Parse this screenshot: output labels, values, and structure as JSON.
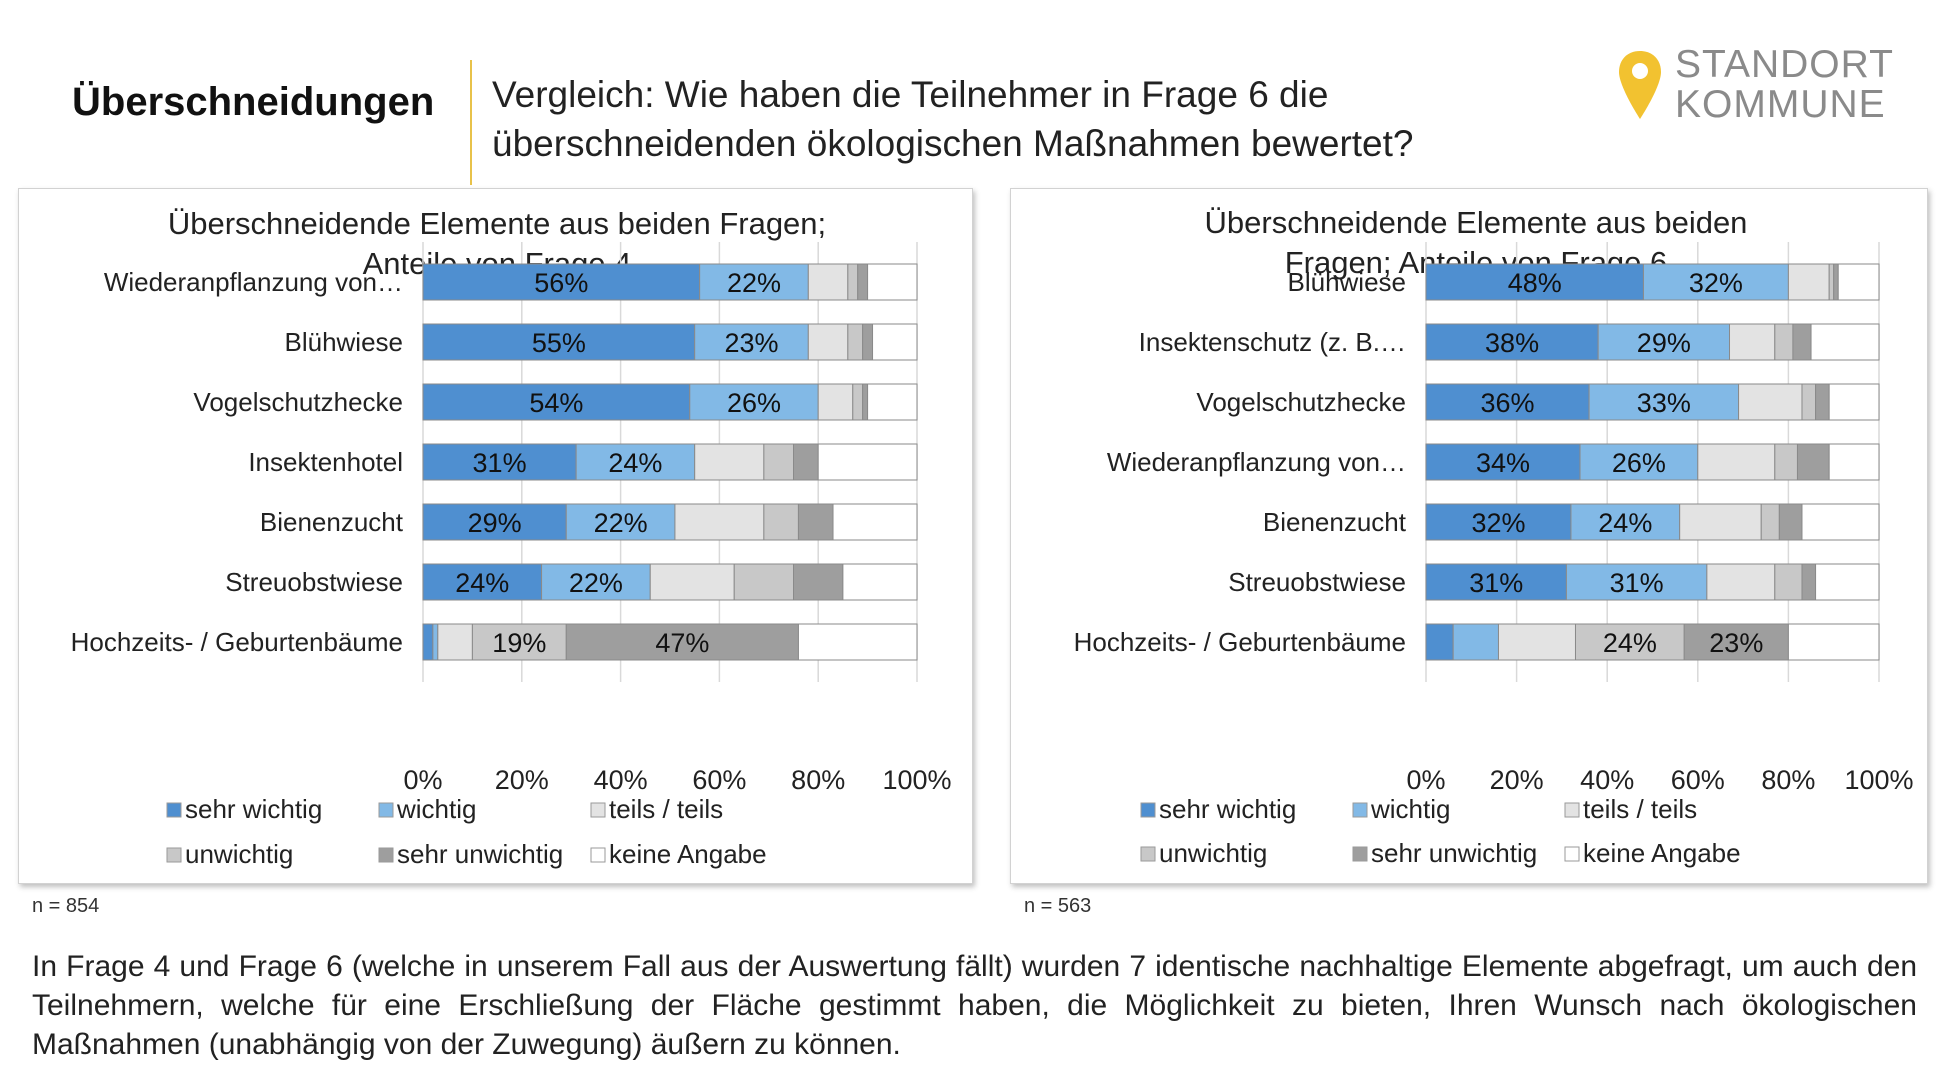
{
  "header": {
    "title": "Überschneidungen",
    "question": "Vergleich: Wie haben die Teilnehmer in Frage 6 die überschneidenden ökologischen Maßnahmen bewertet?"
  },
  "logo": {
    "line1": "STANDORT",
    "line2": "KOMMUNE",
    "pin_color": "#f2c230"
  },
  "footnote": "In Frage 4 und Frage 6 (welche in unserem Fall aus der Auswertung fällt) wurden 7 identische nachhaltige Elemente abgefragt, um auch den Teilnehmern, welche für eine Erschließung der Fläche gestimmt haben, die Möglichkeit zu bieten, Ihren Wunsch nach ökologischen Maßnahmen (unabhängig von der Zuwegung) äußern zu können.",
  "n_left": "n = 854",
  "n_right": "n = 563",
  "chart_data": [
    {
      "type": "bar",
      "orientation": "horizontal",
      "stacked": "percent",
      "title": "Überschneidende Elemente aus beiden Fragen; Anteile von Frage 4",
      "categories": [
        "Wiederanpflanzung von…",
        "Blühwiese",
        "Vogelschutzhecke",
        "Insektenhotel",
        "Bienenzucht",
        "Streuobstwiese",
        "Hochzeits- / Geburtenbäume"
      ],
      "series": [
        {
          "name": "sehr wichtig",
          "color": "#4f8fd0",
          "values": [
            56,
            55,
            54,
            31,
            29,
            24,
            2
          ]
        },
        {
          "name": "wichtig",
          "color": "#82b9e6",
          "values": [
            22,
            23,
            26,
            24,
            22,
            22,
            1
          ]
        },
        {
          "name": "teils / teils",
          "color": "#e3e3e3",
          "values": [
            8,
            8,
            7,
            14,
            18,
            17,
            7
          ]
        },
        {
          "name": "unwichtig",
          "color": "#c8c8c8",
          "values": [
            2,
            3,
            2,
            6,
            7,
            12,
            19
          ]
        },
        {
          "name": "sehr unwichtig",
          "color": "#9e9e9e",
          "values": [
            2,
            2,
            1,
            5,
            7,
            10,
            47
          ]
        },
        {
          "name": "keine Angabe",
          "color": "#ffffff",
          "values": [
            10,
            9,
            10,
            20,
            17,
            15,
            24
          ]
        }
      ],
      "data_labels": [
        [
          "56%",
          "22%"
        ],
        [
          "55%",
          "23%"
        ],
        [
          "54%",
          "26%"
        ],
        [
          "31%",
          "24%"
        ],
        [
          "29%",
          "22%"
        ],
        [
          "24%",
          "22%"
        ],
        [
          "19%",
          "47%"
        ]
      ],
      "data_label_series": [
        [
          0,
          1
        ],
        [
          0,
          1
        ],
        [
          0,
          1
        ],
        [
          0,
          1
        ],
        [
          0,
          1
        ],
        [
          0,
          1
        ],
        [
          3,
          4
        ]
      ],
      "xticks": [
        "0%",
        "20%",
        "40%",
        "60%",
        "80%",
        "100%"
      ],
      "xlim": [
        0,
        100
      ],
      "grid": true,
      "legend": {
        "position": "bottom",
        "labels": [
          "sehr wichtig",
          "wichtig",
          "teils / teils",
          "unwichtig",
          "sehr unwichtig",
          "keine Angabe"
        ]
      }
    },
    {
      "type": "bar",
      "orientation": "horizontal",
      "stacked": "percent",
      "title": "Überschneidende Elemente aus beiden Fragen; Anteile von Frage 6",
      "categories": [
        "Blühwiese",
        "Insektenschutz (z. B.…",
        "Vogelschutzhecke",
        "Wiederanpflanzung von…",
        "Bienenzucht",
        "Streuobstwiese",
        "Hochzeits- / Geburtenbäume"
      ],
      "series": [
        {
          "name": "sehr wichtig",
          "color": "#4f8fd0",
          "values": [
            48,
            38,
            36,
            34,
            32,
            31,
            6
          ]
        },
        {
          "name": "wichtig",
          "color": "#82b9e6",
          "values": [
            32,
            29,
            33,
            26,
            24,
            31,
            10
          ]
        },
        {
          "name": "teils / teils",
          "color": "#e3e3e3",
          "values": [
            9,
            10,
            14,
            17,
            18,
            15,
            17
          ]
        },
        {
          "name": "unwichtig",
          "color": "#c8c8c8",
          "values": [
            1,
            4,
            3,
            5,
            4,
            6,
            24
          ]
        },
        {
          "name": "sehr unwichtig",
          "color": "#9e9e9e",
          "values": [
            1,
            4,
            3,
            7,
            5,
            3,
            23
          ]
        },
        {
          "name": "keine Angabe",
          "color": "#ffffff",
          "values": [
            9,
            15,
            11,
            11,
            17,
            14,
            20
          ]
        }
      ],
      "data_labels": [
        [
          "48%",
          "32%"
        ],
        [
          "38%",
          "29%"
        ],
        [
          "36%",
          "33%"
        ],
        [
          "34%",
          "26%"
        ],
        [
          "32%",
          "24%"
        ],
        [
          "31%",
          "31%"
        ],
        [
          "24%",
          "23%"
        ]
      ],
      "data_label_series": [
        [
          0,
          1
        ],
        [
          0,
          1
        ],
        [
          0,
          1
        ],
        [
          0,
          1
        ],
        [
          0,
          1
        ],
        [
          0,
          1
        ],
        [
          3,
          4
        ]
      ],
      "xticks": [
        "0%",
        "20%",
        "40%",
        "60%",
        "80%",
        "100%"
      ],
      "xlim": [
        0,
        100
      ],
      "grid": true,
      "legend": {
        "position": "bottom",
        "labels": [
          "sehr wichtig",
          "wichtig",
          "teils / teils",
          "unwichtig",
          "sehr unwichtig",
          "keine Angabe"
        ]
      }
    }
  ]
}
